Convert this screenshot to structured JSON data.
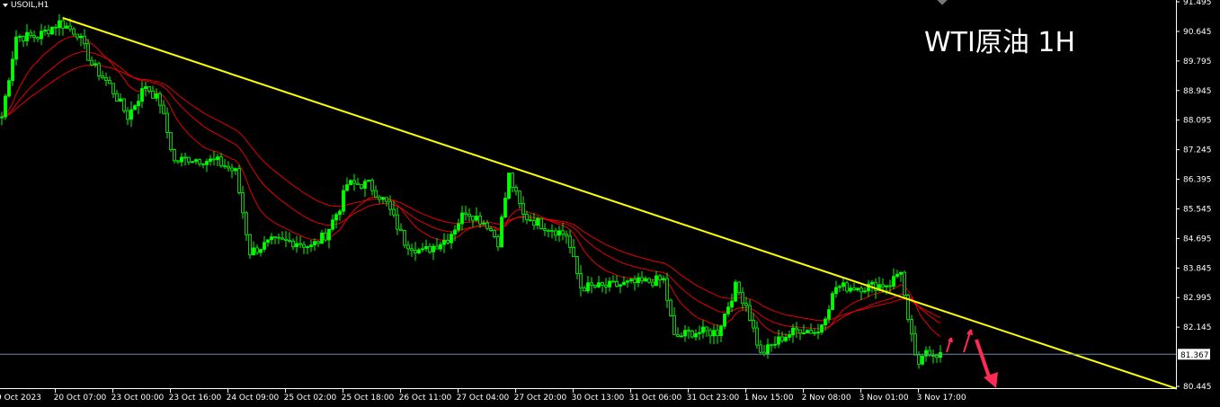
{
  "symbol_label": "USOIL,H1",
  "overlay_title": "WTI原油 1H",
  "colors": {
    "background": "#000000",
    "candle": "#00ff00",
    "moving_average": "#ff0000",
    "trendline": "#ffff00",
    "price_line": "#6f8aa8",
    "arrow": "#ff2a55",
    "axis": "#ffffff"
  },
  "chart_data": {
    "type": "candlestick",
    "title": "",
    "y_ticks": [
      "91.495",
      "90.645",
      "89.795",
      "88.945",
      "88.095",
      "87.245",
      "86.395",
      "85.545",
      "84.695",
      "83.845",
      "82.995",
      "82.145",
      "80.445"
    ],
    "ylim": [
      80.445,
      91.495
    ],
    "x_ticks": [
      "9 Oct 2023",
      "20 Oct 07:00",
      "23 Oct 00:00",
      "23 Oct 16:00",
      "24 Oct 09:00",
      "25 Oct 02:00",
      "25 Oct 18:00",
      "26 Oct 11:00",
      "27 Oct 04:00",
      "27 Oct 20:00",
      "30 Oct 13:00",
      "31 Oct 06:00",
      "31 Oct 23:00",
      "1 Nov 15:00",
      "2 Nov 08:00",
      "3 Nov 01:00",
      "3 Nov 17:00"
    ],
    "current_price": "81.367",
    "price_path": [
      [
        0,
        88.19
      ],
      [
        4,
        90.5
      ],
      [
        10,
        90.5
      ],
      [
        16,
        90.9
      ],
      [
        21,
        90.6
      ],
      [
        25,
        89.7
      ],
      [
        30,
        89.1
      ],
      [
        35,
        88.2
      ],
      [
        40,
        89.1
      ],
      [
        44,
        88.6
      ],
      [
        48,
        86.9
      ],
      [
        52,
        87.0
      ],
      [
        60,
        86.9
      ],
      [
        65,
        86.6
      ],
      [
        69,
        84.3
      ],
      [
        75,
        84.6
      ],
      [
        82,
        84.6
      ],
      [
        86,
        84.45
      ],
      [
        90,
        84.8
      ],
      [
        94,
        85.6
      ],
      [
        96,
        86.25
      ],
      [
        102,
        86.25
      ],
      [
        107,
        85.7
      ],
      [
        112,
        84.6
      ],
      [
        117,
        84.3
      ],
      [
        124,
        84.7
      ],
      [
        129,
        85.5
      ],
      [
        135,
        85.1
      ],
      [
        138,
        84.6
      ],
      [
        141,
        86.5
      ],
      [
        145,
        85.35
      ],
      [
        150,
        85.1
      ],
      [
        157,
        84.8
      ],
      [
        161,
        83.3
      ],
      [
        167,
        83.3
      ],
      [
        175,
        83.4
      ],
      [
        184,
        83.5
      ],
      [
        187,
        81.85
      ],
      [
        192,
        82.0
      ],
      [
        199,
        82.0
      ],
      [
        204,
        83.3
      ],
      [
        207,
        82.8
      ],
      [
        211,
        81.35
      ],
      [
        217,
        81.85
      ],
      [
        222,
        82.1
      ],
      [
        227,
        82.0
      ],
      [
        232,
        83.3
      ],
      [
        240,
        83.3
      ],
      [
        247,
        83.4
      ],
      [
        250,
        83.8
      ],
      [
        252,
        82.25
      ],
      [
        255,
        80.95
      ],
      [
        257,
        81.5
      ],
      [
        261,
        81.35
      ]
    ],
    "trendline": {
      "start": [
        17,
        91.03
      ],
      "end": [
        327,
        80.37
      ]
    }
  }
}
